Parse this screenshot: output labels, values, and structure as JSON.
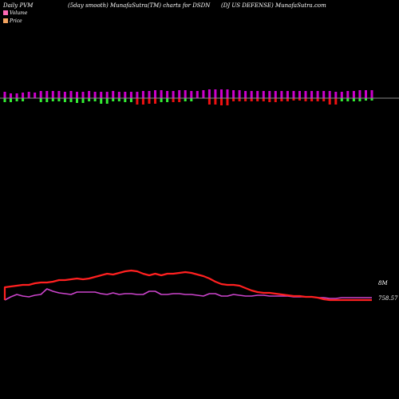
{
  "header": {
    "left": "Daily PVM",
    "middle": "(5day smooth) MunafaSutra(TM) charts for DSDN",
    "right": "(DJ US DEFENSE) MunafaSutra.com"
  },
  "legend": [
    {
      "label": "Volume",
      "color": "#ff69b4"
    },
    {
      "label": "Price",
      "color": "#f4a460"
    }
  ],
  "colors": {
    "background": "#000000",
    "volume_up": "#cc00cc",
    "volume_down_red": "#ee1111",
    "volume_down_green": "#33ee33",
    "price_line": "#ff2020",
    "volume_line": "#cc44cc",
    "baseline": "#888888"
  },
  "chart_data": {
    "type": "line",
    "bars": {
      "up": [
        8,
        6,
        6,
        7,
        8,
        7,
        9,
        9,
        9,
        9,
        8,
        9,
        8,
        8,
        9,
        8,
        8,
        8,
        9,
        8,
        8,
        8,
        8,
        9,
        9,
        10,
        10,
        9,
        9,
        10,
        10,
        9,
        9,
        10,
        11,
        11,
        11,
        11,
        10,
        10,
        9,
        9,
        9,
        9,
        9,
        9,
        9,
        9,
        9,
        9,
        9,
        9,
        9,
        9,
        9,
        8,
        8,
        9,
        9,
        10,
        10,
        10
      ],
      "down": [
        5,
        5,
        4,
        4,
        0,
        0,
        5,
        5,
        4,
        4,
        5,
        5,
        6,
        6,
        4,
        4,
        7,
        7,
        4,
        4,
        5,
        5,
        8,
        8,
        7,
        7,
        5,
        5,
        5,
        5,
        4,
        4,
        0,
        0,
        8,
        8,
        9,
        9,
        4,
        4,
        4,
        4,
        4,
        4,
        5,
        5,
        4,
        4,
        3,
        3,
        4,
        4,
        4,
        4,
        8,
        8,
        4,
        4,
        4,
        4,
        3,
        3
      ],
      "down_color": [
        "g",
        "g",
        "g",
        "g",
        "g",
        "g",
        "g",
        "g",
        "g",
        "g",
        "g",
        "g",
        "g",
        "g",
        "g",
        "g",
        "g",
        "g",
        "g",
        "g",
        "g",
        "g",
        "r",
        "r",
        "r",
        "r",
        "g",
        "g",
        "r",
        "r",
        "g",
        "g",
        "g",
        "g",
        "r",
        "r",
        "r",
        "r",
        "r",
        "r",
        "r",
        "r",
        "r",
        "r",
        "r",
        "r",
        "r",
        "r",
        "r",
        "r",
        "r",
        "r",
        "r",
        "r",
        "r",
        "r",
        "g",
        "g",
        "g",
        "g",
        "g",
        "g"
      ]
    },
    "series": [
      {
        "label": "8M",
        "values": [
          24,
          28,
          31,
          29,
          28,
          30,
          31,
          38,
          35,
          33,
          32,
          31,
          34,
          34,
          34,
          34,
          32,
          31,
          33,
          31,
          32,
          32,
          31,
          31,
          35,
          35,
          31,
          31,
          32,
          32,
          31,
          31,
          30,
          29,
          32,
          32,
          29,
          29,
          31,
          30,
          29,
          29,
          30,
          30,
          29,
          29,
          29,
          29,
          28,
          28,
          28,
          28,
          27,
          27,
          26,
          26,
          27,
          27,
          27,
          27,
          27,
          27
        ]
      },
      {
        "label": "758.57",
        "values": [
          40,
          41,
          42,
          43,
          43,
          45,
          46,
          46,
          47,
          49,
          49,
          50,
          51,
          50,
          51,
          53,
          55,
          57,
          56,
          58,
          60,
          61,
          60,
          57,
          55,
          57,
          55,
          57,
          57,
          58,
          59,
          58,
          56,
          54,
          51,
          47,
          44,
          43,
          43,
          42,
          39,
          36,
          34,
          33,
          33,
          32,
          31,
          30,
          29,
          29,
          28,
          28,
          27,
          25,
          24,
          24,
          24,
          24,
          24,
          24,
          24,
          24
        ]
      }
    ]
  }
}
